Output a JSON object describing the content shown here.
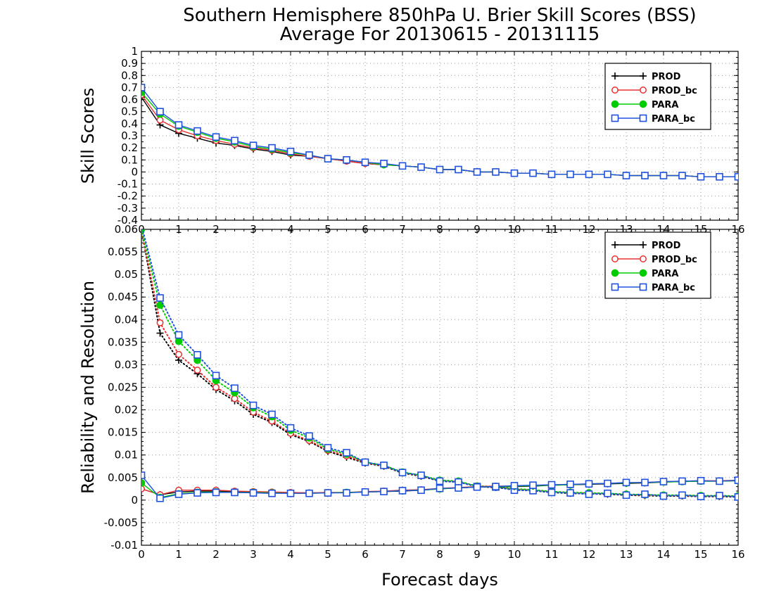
{
  "title": "Southern Hemisphere 850hPa U. Brier Skill Scores (BSS)",
  "subtitle": "Average For 20130615 - 20131115",
  "xlabel": "Forecast days",
  "colors": {
    "PROD": "#000000",
    "PROD_bc": "#e83030",
    "PARA": "#00cc00",
    "PARA_bc": "#2050e0"
  },
  "chart_data": [
    {
      "type": "line",
      "ylabel": "Skill Scores",
      "xlim": [
        0,
        16
      ],
      "ylim": [
        -0.4,
        1
      ],
      "x_ticks": [
        "0",
        "1",
        "2",
        "3",
        "4",
        "5",
        "6",
        "7",
        "8",
        "9",
        "10",
        "11",
        "12",
        "13",
        "14",
        "15",
        "16"
      ],
      "y_ticks": [
        "-0.4",
        "-0.3",
        "-0.2",
        "-0.1",
        "0",
        "0.1",
        "0.2",
        "0.3",
        "0.4",
        "0.5",
        "0.6",
        "0.7",
        "0.8",
        "0.9",
        "1"
      ],
      "grid": true,
      "legend": "top-right",
      "x": [
        0,
        0.5,
        1,
        1.5,
        2,
        2.5,
        3,
        3.5,
        4,
        4.5,
        5,
        5.5,
        6,
        6.5,
        7,
        7.5,
        8,
        8.5,
        9,
        9.5,
        10,
        10.5,
        11,
        11.5,
        12,
        12.5,
        13,
        13.5,
        14,
        14.5,
        15,
        15.5,
        16
      ],
      "series": [
        {
          "name": "PROD",
          "marker": "plus",
          "values": [
            0.62,
            0.39,
            0.32,
            0.28,
            0.24,
            0.22,
            0.19,
            0.17,
            0.14,
            0.13,
            0.11,
            0.09,
            0.07,
            0.06,
            0.05,
            0.04,
            0.02,
            0.02,
            0.0,
            0.0,
            -0.01,
            -0.01,
            -0.02,
            -0.02,
            -0.02,
            -0.02,
            -0.03,
            -0.03,
            -0.03,
            -0.03,
            -0.04,
            -0.04,
            -0.04
          ]
        },
        {
          "name": "PROD_bc",
          "marker": "circle",
          "values": [
            0.64,
            0.43,
            0.35,
            0.3,
            0.26,
            0.23,
            0.2,
            0.18,
            0.15,
            0.13,
            0.11,
            0.09,
            0.07,
            0.06,
            0.05,
            0.04,
            0.02,
            0.02,
            0.0,
            0.0,
            -0.01,
            -0.01,
            -0.02,
            -0.02,
            -0.02,
            -0.02,
            -0.03,
            -0.03,
            -0.03,
            -0.03,
            -0.04,
            -0.04,
            -0.04
          ]
        },
        {
          "name": "PARA",
          "marker": "dot",
          "values": [
            0.66,
            0.48,
            0.38,
            0.33,
            0.28,
            0.25,
            0.21,
            0.19,
            0.16,
            0.14,
            0.11,
            0.1,
            0.08,
            0.06,
            0.05,
            0.04,
            0.02,
            0.02,
            0.0,
            0.0,
            -0.01,
            -0.01,
            -0.02,
            -0.02,
            -0.02,
            -0.02,
            -0.03,
            -0.03,
            -0.03,
            -0.03,
            -0.04,
            -0.04,
            -0.04
          ]
        },
        {
          "name": "PARA_bc",
          "marker": "square",
          "values": [
            0.7,
            0.5,
            0.39,
            0.34,
            0.29,
            0.26,
            0.22,
            0.2,
            0.17,
            0.14,
            0.11,
            0.1,
            0.08,
            0.07,
            0.05,
            0.04,
            0.02,
            0.02,
            0.0,
            0.0,
            -0.01,
            -0.01,
            -0.02,
            -0.02,
            -0.02,
            -0.02,
            -0.03,
            -0.03,
            -0.03,
            -0.03,
            -0.04,
            -0.04,
            -0.04
          ]
        }
      ]
    },
    {
      "type": "line",
      "ylabel": "Reliability and Resolution",
      "xlim": [
        0,
        16
      ],
      "ylim": [
        -0.01,
        0.06
      ],
      "x_ticks": [
        "0",
        "1",
        "2",
        "3",
        "4",
        "5",
        "6",
        "7",
        "8",
        "9",
        "10",
        "11",
        "12",
        "13",
        "14",
        "15",
        "16"
      ],
      "y_ticks": [
        "-0.01",
        "-0.005",
        "0",
        "0.005",
        "0.01",
        "0.015",
        "0.02",
        "0.025",
        "0.03",
        "0.035",
        "0.04",
        "0.045",
        "0.05",
        "0.055",
        "0.06"
      ],
      "grid": true,
      "legend": "top-right",
      "x": [
        0,
        0.5,
        1,
        1.5,
        2,
        2.5,
        3,
        3.5,
        4,
        4.5,
        5,
        5.5,
        6,
        6.5,
        7,
        7.5,
        8,
        8.5,
        9,
        9.5,
        10,
        10.5,
        11,
        11.5,
        12,
        12.5,
        13,
        13.5,
        14,
        14.5,
        15,
        15.5,
        16
      ],
      "series": [
        {
          "name": "PROD",
          "component": "resolution",
          "style": "dotted",
          "marker": "plus",
          "values": [
            0.06,
            0.037,
            0.031,
            0.028,
            0.0245,
            0.022,
            0.019,
            0.0172,
            0.0145,
            0.013,
            0.0108,
            0.0095,
            0.0082,
            0.0075,
            0.006,
            0.0053,
            0.0042,
            0.004,
            0.003,
            0.0028,
            0.0023,
            0.0021,
            0.0017,
            0.0015,
            0.0014,
            0.0013,
            0.0011,
            0.001,
            0.0009,
            0.0009,
            0.0008,
            0.0008,
            0.0007
          ]
        },
        {
          "name": "PROD_bc",
          "component": "resolution",
          "style": "dotted",
          "marker": "circle",
          "values": [
            0.06,
            0.0393,
            0.0323,
            0.0288,
            0.025,
            0.0225,
            0.0195,
            0.0175,
            0.0148,
            0.0132,
            0.011,
            0.0098,
            0.0083,
            0.0076,
            0.0061,
            0.0054,
            0.0043,
            0.0041,
            0.003,
            0.0029,
            0.0024,
            0.0022,
            0.0018,
            0.0016,
            0.0015,
            0.0014,
            0.0012,
            0.0011,
            0.001,
            0.001,
            0.0009,
            0.0009,
            0.0008
          ]
        },
        {
          "name": "PARA",
          "component": "resolution",
          "style": "dotted",
          "marker": "dot",
          "values": [
            0.06,
            0.0432,
            0.0352,
            0.031,
            0.0265,
            0.0238,
            0.0205,
            0.0185,
            0.0155,
            0.0138,
            0.0113,
            0.0102,
            0.0084,
            0.0077,
            0.0062,
            0.0055,
            0.0044,
            0.0042,
            0.0031,
            0.003,
            0.0025,
            0.0023,
            0.0019,
            0.0017,
            0.0016,
            0.0015,
            0.0013,
            0.0012,
            0.0011,
            0.0011,
            0.001,
            0.001,
            0.0009
          ]
        },
        {
          "name": "PARA_bc",
          "component": "resolution",
          "style": "dotted",
          "marker": "square",
          "values": [
            0.061,
            0.0448,
            0.0366,
            0.0322,
            0.0276,
            0.0248,
            0.021,
            0.019,
            0.016,
            0.0142,
            0.0116,
            0.0105,
            0.0084,
            0.0077,
            0.0061,
            0.0055,
            0.0042,
            0.004,
            0.003,
            0.0029,
            0.0022,
            0.0021,
            0.0017,
            0.0016,
            0.0013,
            0.0015,
            0.0011,
            0.0013,
            0.0009,
            0.0011,
            0.0008,
            0.001,
            0.0007
          ]
        },
        {
          "name": "PROD",
          "component": "reliability",
          "style": "solid",
          "marker": "plus",
          "values": [
            0.0025,
            0.0012,
            0.0018,
            0.002,
            0.002,
            0.0019,
            0.0018,
            0.0017,
            0.0016,
            0.0016,
            0.0016,
            0.0017,
            0.0018,
            0.0019,
            0.002,
            0.0022,
            0.0025,
            0.0027,
            0.0029,
            0.003,
            0.003,
            0.0031,
            0.0033,
            0.0034,
            0.0035,
            0.0036,
            0.0037,
            0.0038,
            0.004,
            0.0041,
            0.0042,
            0.0042,
            0.0043
          ]
        },
        {
          "name": "PROD_bc",
          "component": "reliability",
          "style": "solid",
          "marker": "circle",
          "values": [
            0.0025,
            0.0012,
            0.0022,
            0.0022,
            0.0022,
            0.002,
            0.0019,
            0.0018,
            0.0017,
            0.0016,
            0.0017,
            0.0017,
            0.0019,
            0.002,
            0.0022,
            0.0023,
            0.0026,
            0.0028,
            0.003,
            0.0031,
            0.0031,
            0.0032,
            0.0034,
            0.0035,
            0.0036,
            0.0037,
            0.0038,
            0.0039,
            0.0041,
            0.0042,
            0.0043,
            0.0043,
            0.0044
          ]
        },
        {
          "name": "PARA",
          "component": "reliability",
          "style": "solid",
          "marker": "dot",
          "values": [
            0.0038,
            0.0006,
            0.0014,
            0.0017,
            0.0018,
            0.0017,
            0.0017,
            0.0016,
            0.0015,
            0.0015,
            0.0016,
            0.0017,
            0.0018,
            0.0019,
            0.0021,
            0.0022,
            0.0025,
            0.0027,
            0.0029,
            0.003,
            0.0031,
            0.0032,
            0.0033,
            0.0034,
            0.0036,
            0.0037,
            0.0038,
            0.0039,
            0.004,
            0.0041,
            0.0042,
            0.0042,
            0.0043
          ]
        },
        {
          "name": "PARA_bc",
          "component": "reliability",
          "style": "solid",
          "marker": "square",
          "values": [
            0.0055,
            0.0004,
            0.0013,
            0.0016,
            0.0017,
            0.0017,
            0.0016,
            0.0015,
            0.0015,
            0.0015,
            0.0016,
            0.0016,
            0.0018,
            0.0019,
            0.0021,
            0.0022,
            0.0026,
            0.0027,
            0.0029,
            0.003,
            0.0032,
            0.0033,
            0.0034,
            0.0035,
            0.0036,
            0.0037,
            0.0039,
            0.0039,
            0.0041,
            0.0042,
            0.0043,
            0.0042,
            0.0044
          ]
        }
      ]
    }
  ]
}
